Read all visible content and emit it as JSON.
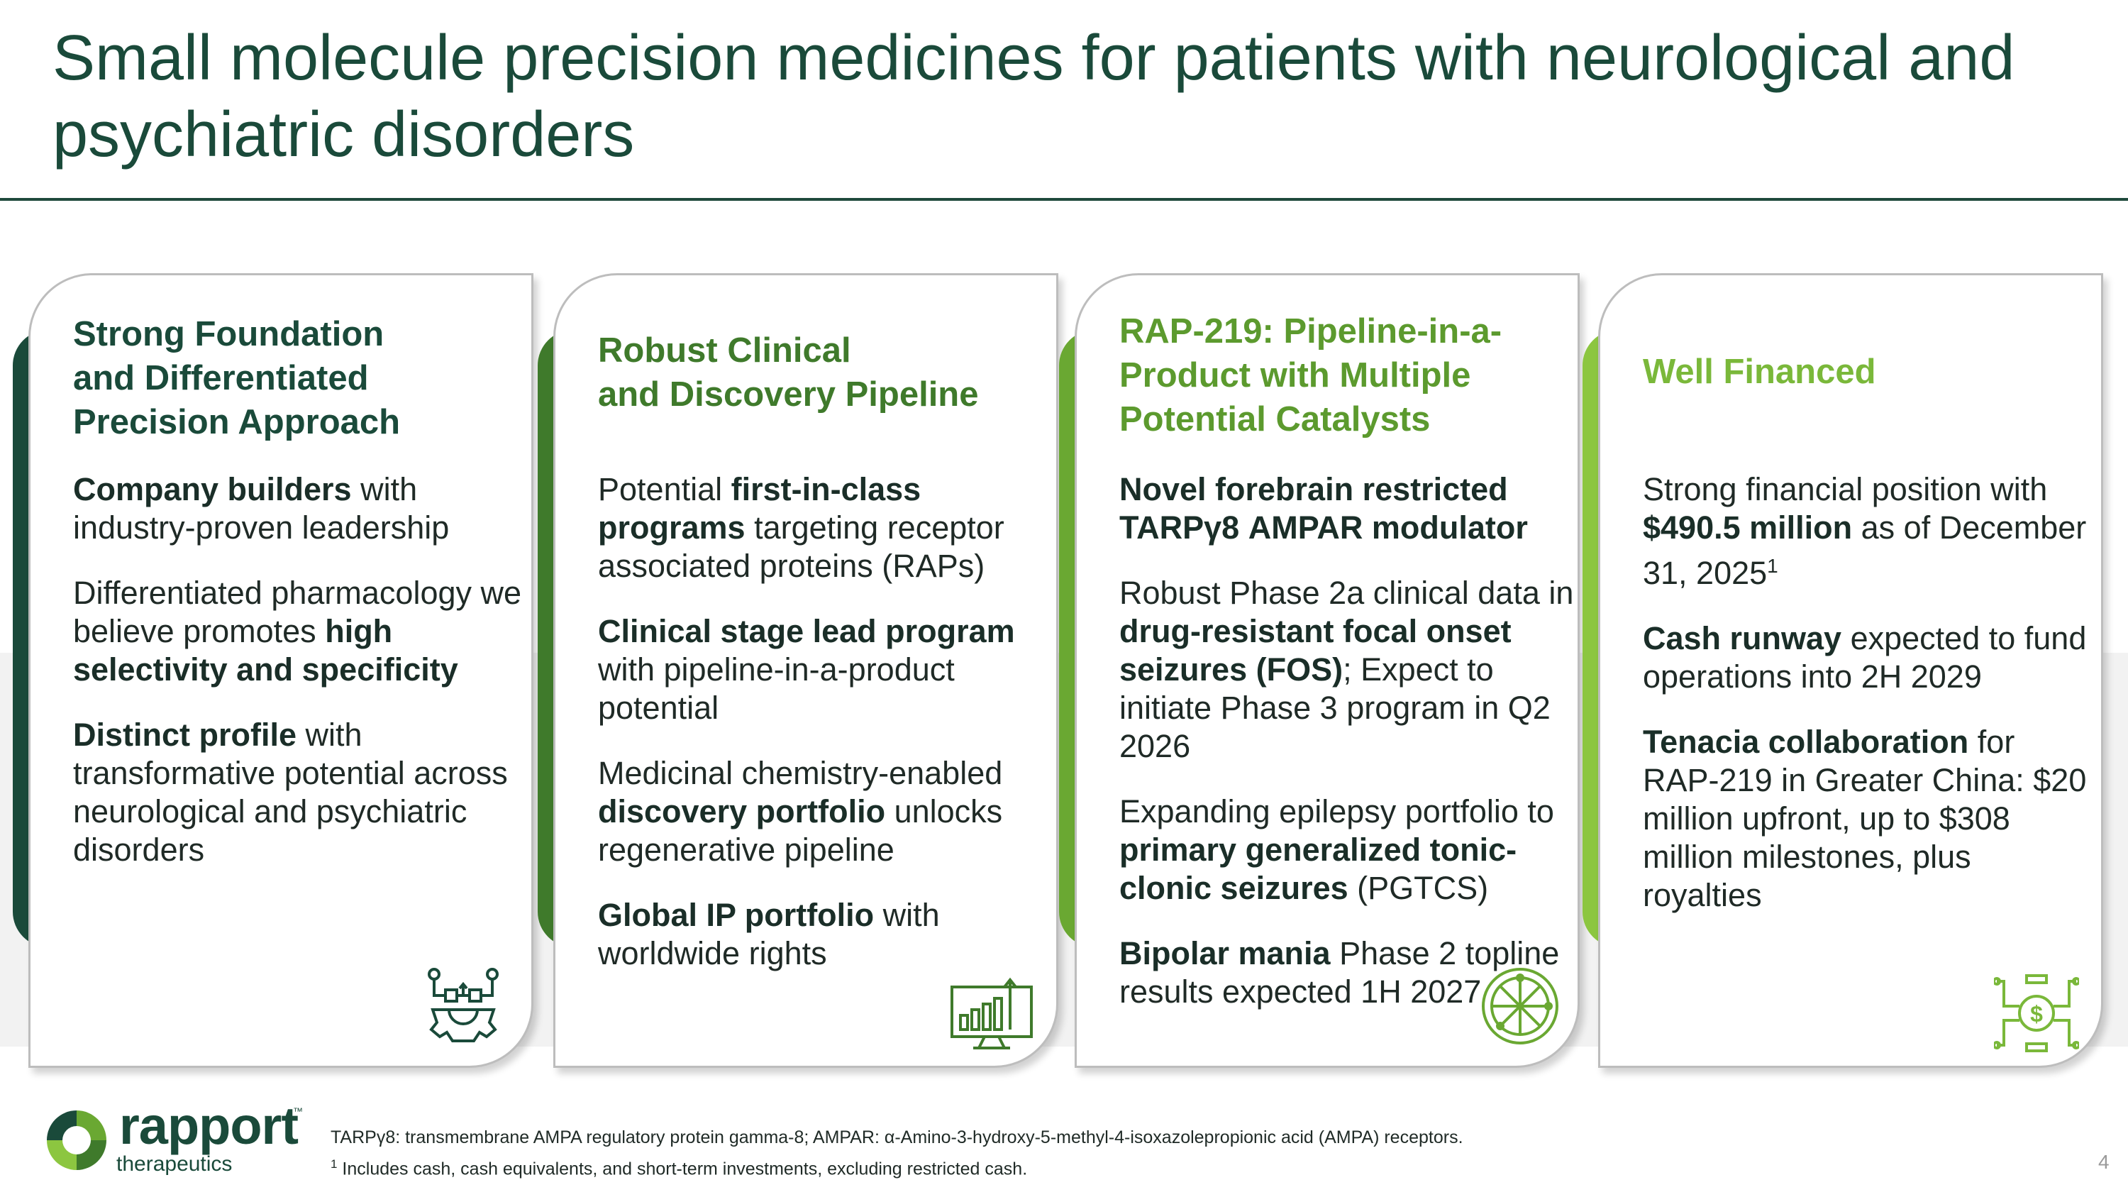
{
  "title": "Small molecule precision medicines for patients with neurological and psychiatric disorders",
  "colors": {
    "dark_green": "#1a4a3a",
    "mid_green": "#3f7a2b",
    "bright_green": "#6aa832",
    "lime_green": "#8cc640"
  },
  "cards": [
    {
      "title_lines": [
        "Strong Foundation",
        "and Differentiated",
        "Precision Approach"
      ],
      "icon": "gear-network-icon",
      "items": [
        {
          "parts": [
            {
              "b": true,
              "t": "Company builders"
            },
            {
              "b": false,
              "t": " with industry-proven leadership"
            }
          ]
        },
        {
          "parts": [
            {
              "b": false,
              "t": "Differentiated pharmacology we believe promotes "
            },
            {
              "b": true,
              "t": "high selectivity and specificity"
            }
          ]
        },
        {
          "parts": [
            {
              "b": true,
              "t": "Distinct profile"
            },
            {
              "b": false,
              "t": " with transformative potential across neurological and psychiatric disorders"
            }
          ]
        }
      ]
    },
    {
      "title_lines": [
        "Robust Clinical",
        "and Discovery Pipeline"
      ],
      "icon": "bar-chart-monitor-icon",
      "items": [
        {
          "parts": [
            {
              "b": false,
              "t": "Potential "
            },
            {
              "b": true,
              "t": "first-in-class programs"
            },
            {
              "b": false,
              "t": " targeting receptor associated proteins (RAPs)"
            }
          ]
        },
        {
          "parts": [
            {
              "b": true,
              "t": "Clinical stage lead program"
            },
            {
              "b": false,
              "t": " with pipeline-in-a-product potential"
            }
          ]
        },
        {
          "parts": [
            {
              "b": false,
              "t": "Medicinal chemistry-enabled "
            },
            {
              "b": true,
              "t": "discovery portfolio"
            },
            {
              "b": false,
              "t": " unlocks regenerative pipeline"
            }
          ]
        },
        {
          "parts": [
            {
              "b": true,
              "t": "Global IP portfolio"
            },
            {
              "b": false,
              "t": " with worldwide rights"
            }
          ]
        }
      ]
    },
    {
      "title_lines": [
        "RAP-219: Pipeline-in-a-",
        "Product with Multiple",
        "Potential Catalysts"
      ],
      "icon": "brain-circuit-icon",
      "items": [
        {
          "parts": [
            {
              "b": true,
              "t": "Novel forebrain restricted TARPγ8 AMPAR modulator"
            }
          ]
        },
        {
          "parts": [
            {
              "b": false,
              "t": "Robust Phase 2a clinical data in "
            },
            {
              "b": true,
              "t": "drug-resistant focal onset seizures (FOS)"
            },
            {
              "b": false,
              "t": "; Expect to initiate Phase 3 program in Q2 2026"
            }
          ]
        },
        {
          "parts": [
            {
              "b": false,
              "t": "Expanding epilepsy portfolio to "
            },
            {
              "b": true,
              "t": "primary generalized tonic-clonic seizures"
            },
            {
              "b": false,
              "t": " (PGTCS)"
            }
          ]
        },
        {
          "parts": [
            {
              "b": true,
              "t": "Bipolar mania"
            },
            {
              "b": false,
              "t": " Phase 2 topline results expected 1H 2027"
            }
          ]
        }
      ]
    },
    {
      "title_lines": [
        "Well Financed"
      ],
      "icon": "dollar-circuit-icon",
      "items": [
        {
          "parts": [
            {
              "b": false,
              "t": "Strong financial position with "
            },
            {
              "b": true,
              "t": "$490.5 million"
            },
            {
              "b": false,
              "t": " as of December 31, 2025"
            },
            {
              "sup": true,
              "t": "1"
            }
          ]
        },
        {
          "parts": [
            {
              "b": true,
              "t": "Cash runway"
            },
            {
              "b": false,
              "t": " expected to fund operations into 2H 2029"
            }
          ]
        },
        {
          "parts": [
            {
              "b": true,
              "t": "Tenacia collaboration"
            },
            {
              "b": false,
              "t": " for RAP-219 in Greater China: $20 million upfront, up to $308 million milestones,  plus royalties"
            }
          ]
        }
      ]
    }
  ],
  "logo": {
    "name": "rapport",
    "sub": "therapeutics",
    "tm": "™"
  },
  "footnotes": {
    "line1": "TARPγ8: transmembrane AMPA regulatory protein gamma-8; AMPAR: α-Amino-3-hydroxy-5-methyl-4-isoxazolepropionic acid (AMPA) receptors.",
    "line2_sup": "1",
    "line2": " Includes cash, cash equivalents, and short-term investments, excluding restricted cash."
  },
  "page_number": "4"
}
